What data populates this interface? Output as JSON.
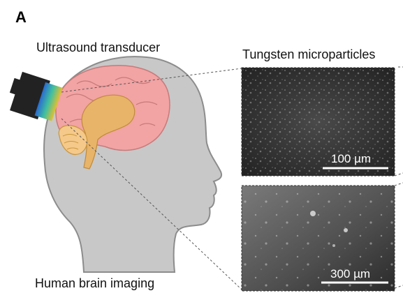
{
  "panel_label": "A",
  "labels": {
    "transducer": "Ultrasound transducer",
    "tungsten": "Tungsten microparticles",
    "imaging": "Human brain imaging"
  },
  "micrographs": [
    {
      "scale_bar": "100 µm"
    },
    {
      "scale_bar": "300 µm"
    }
  ],
  "colors": {
    "head": "#c8c8c8",
    "head_outline": "#8c8c8c",
    "brain": "#f2a3a3",
    "brain_inner": "#e8b46a",
    "cerebellum": "#f5c98a",
    "transducer_body": "#222222",
    "micrograph_bg": "#2e2e2e"
  }
}
